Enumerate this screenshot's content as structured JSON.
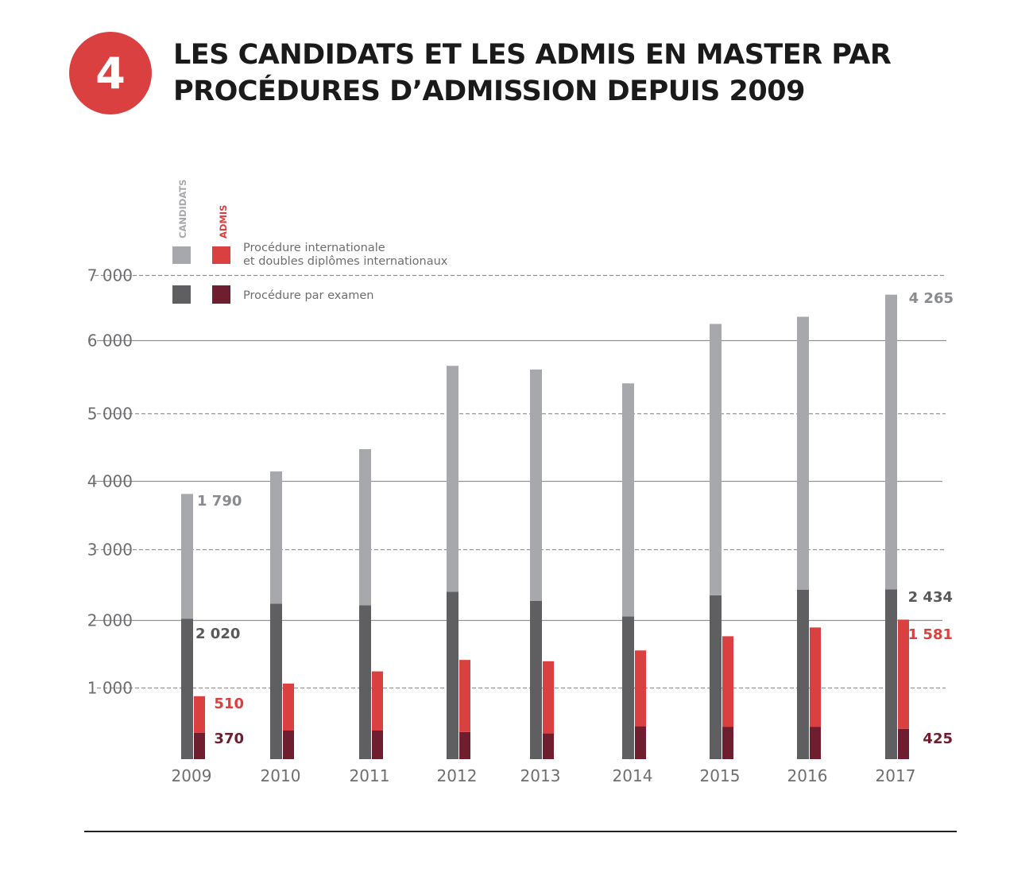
{
  "header": {
    "number": "4",
    "title_line1": "LES CANDIDATS ET LES ADMIS EN MASTER PAR",
    "title_line2": "PROCÉDURES D’ADMISSION DEPUIS 2009"
  },
  "colors": {
    "badge": "#db4040",
    "candidats_international": "#a7a8ab",
    "candidats_examen": "#5f5f61",
    "admis_international": "#db4040",
    "admis_examen": "#6e1e2e",
    "grid": "#939393",
    "axis_text": "#6d6e71"
  },
  "chart_data": {
    "type": "bar",
    "subtype": "paired-stacked",
    "title": "LES CANDIDATS ET LES ADMIS EN MASTER PAR PROCÉDURES D’ADMISSION DEPUIS 2009",
    "xlabel": "",
    "ylabel": "",
    "ylim": [
      0,
      7000
    ],
    "yticks": [
      1000,
      2000,
      3000,
      4000,
      5000,
      6000,
      7000
    ],
    "ytick_labels": [
      "1 000",
      "2 000",
      "3 000",
      "4 000",
      "5 000",
      "6 000",
      "7 000"
    ],
    "grid": true,
    "legend_placement": "top-left",
    "legend": {
      "group_candidats": "CANDIDATS",
      "group_admis": "ADMIS",
      "row_international": "Procédure internationale",
      "row_international_line2": "et doubles diplômes internationaux",
      "row_examen": "Procédure par examen"
    },
    "categories": [
      "2009",
      "2010",
      "2011",
      "2012",
      "2013",
      "2014",
      "2015",
      "2016",
      "2017"
    ],
    "series": [
      {
        "name": "Candidats - Procédure par examen",
        "group": "candidats",
        "stack_order": 0,
        "values": [
          2020,
          2230,
          2210,
          2400,
          2270,
          2050,
          2350,
          2430,
          2434
        ]
      },
      {
        "name": "Candidats - Procédure internationale et doubles diplômes internationaux",
        "group": "candidats",
        "stack_order": 1,
        "values": [
          1790,
          1910,
          2260,
          3250,
          3330,
          3360,
          3900,
          3930,
          4265
        ]
      },
      {
        "name": "Admis - Procédure par examen",
        "group": "admis",
        "stack_order": 0,
        "values": [
          370,
          400,
          400,
          380,
          360,
          460,
          450,
          450,
          425
        ]
      },
      {
        "name": "Admis - Procédure internationale et doubles diplômes internationaux",
        "group": "admis",
        "stack_order": 1,
        "values": [
          510,
          660,
          840,
          1030,
          1030,
          1090,
          1310,
          1440,
          1581
        ]
      }
    ],
    "data_labels": [
      {
        "year": "2009",
        "series": "Candidats - Procédure internationale et doubles diplômes internationaux",
        "text": "1 790"
      },
      {
        "year": "2009",
        "series": "Candidats - Procédure par examen",
        "text": "2 020"
      },
      {
        "year": "2009",
        "series": "Admis - Procédure internationale et doubles diplômes internationaux",
        "text": "510"
      },
      {
        "year": "2009",
        "series": "Admis - Procédure par examen",
        "text": "370"
      },
      {
        "year": "2017",
        "series": "Candidats - Procédure internationale et doubles diplômes internationaux",
        "text": "4 265"
      },
      {
        "year": "2017",
        "series": "Candidats - Procédure par examen",
        "text": "2 434"
      },
      {
        "year": "2017",
        "series": "Admis - Procédure internationale et doubles diplômes internationaux",
        "text": "1 581"
      },
      {
        "year": "2017",
        "series": "Admis - Procédure par examen",
        "text": "425"
      }
    ]
  }
}
